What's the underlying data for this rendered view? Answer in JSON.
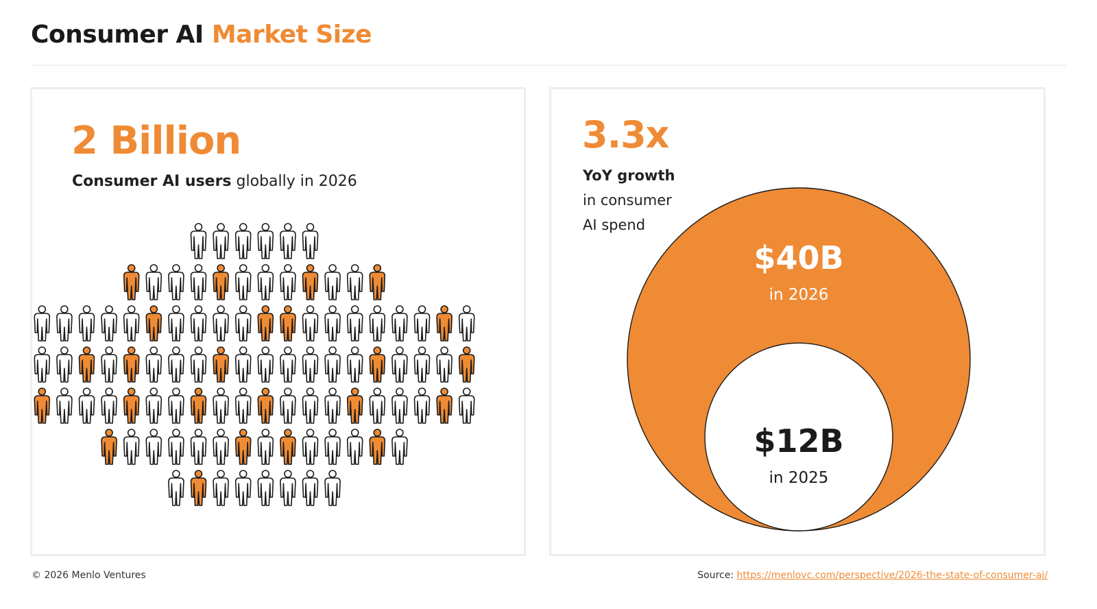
{
  "header": {
    "title_main": "Consumer AI",
    "title_accent": "Market Size"
  },
  "users_card": {
    "stat": "2 Billion",
    "sub_bold": "Consumer AI users",
    "sub_rest": "globally in 2026"
  },
  "spend_card": {
    "stat": "3.3x",
    "sub_line1": "YoY growth",
    "sub_line2": "in consumer",
    "sub_line3": "AI spend"
  },
  "chart_data": [
    {
      "type": "pictogram",
      "description_value": "2 Billion",
      "rows": [
        {
          "count": 6,
          "highlighted": []
        },
        {
          "count": 12,
          "highlighted": [
            0,
            4,
            8,
            11
          ]
        },
        {
          "count": 20,
          "highlighted": [
            5,
            10,
            11,
            18
          ]
        },
        {
          "count": 20,
          "highlighted": [
            2,
            4,
            8,
            15,
            19
          ]
        },
        {
          "count": 20,
          "highlighted": [
            0,
            4,
            7,
            10,
            14,
            18
          ]
        },
        {
          "count": 14,
          "highlighted": [
            0,
            6,
            8,
            12
          ]
        },
        {
          "count": 8,
          "highlighted": [
            1
          ]
        }
      ],
      "colors": {
        "highlight": "#ef8b35",
        "base": "#ffffff",
        "outline": "#1a1a1a"
      }
    },
    {
      "type": "nested-bubble",
      "series": [
        {
          "name": "in 2026",
          "value": 40,
          "label": "$40B"
        },
        {
          "name": "in 2025",
          "value": 12,
          "label": "$12B"
        }
      ],
      "growth": "3.3x",
      "colors": {
        "outer": "#ef8b35",
        "inner": "#ffffff"
      }
    }
  ],
  "footer": {
    "copyright": "© 2026 Menlo Ventures",
    "source_label": "Source:",
    "source_url": "https://menlovc.com/perspective/2026-the-state-of-consumer-ai/"
  }
}
